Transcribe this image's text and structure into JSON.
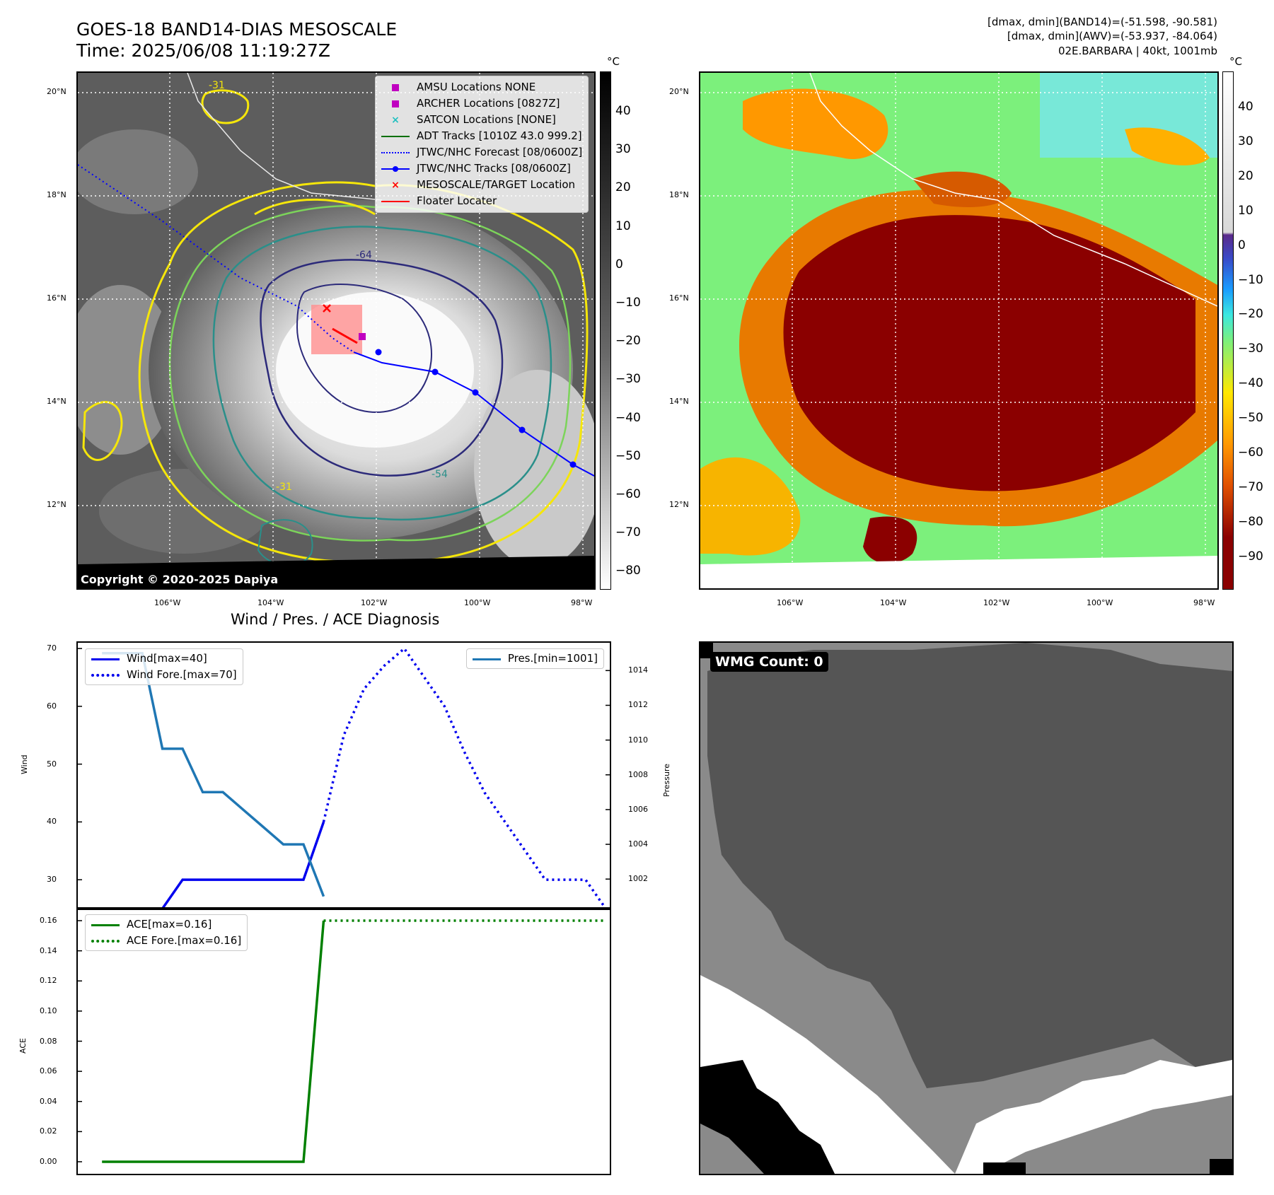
{
  "header": {
    "title_line1": "GOES-18 BAND14-DIAS MESOSCALE",
    "title_line2": "Time: 2025/06/08 11:19:27Z",
    "info_line1": "[dmax, dmin](BAND14)=(-51.598, -90.581)",
    "info_line2": "[dmax, dmin](AWV)=(-53.937, -84.064)",
    "info_line3": "02E.BARBARA | 40kt, 1001mb"
  },
  "map_ir": {
    "lat_labels": [
      "20°N",
      "18°N",
      "16°N",
      "14°N",
      "12°N"
    ],
    "lon_labels": [
      "106°W",
      "104°W",
      "102°W",
      "100°W",
      "98°W"
    ],
    "contour_labels": [
      "-31",
      "-54",
      "-64"
    ],
    "colorbar": {
      "unit": "°C",
      "ticks": [
        "40",
        "30",
        "20",
        "10",
        "0",
        "−10",
        "−20",
        "−30",
        "−40",
        "−50",
        "−60",
        "−70",
        "−80"
      ]
    },
    "copyright": "Copyright © 2020-2025 Dapiya",
    "legend": [
      {
        "label": "AMSU Locations NONE",
        "marker": "square",
        "color": "#c000c0"
      },
      {
        "label": "ARCHER Locations [0827Z]",
        "marker": "square",
        "color": "#c000c0"
      },
      {
        "label": "SATCON Locations [NONE]",
        "marker": "x",
        "color": "#20c0c0"
      },
      {
        "label": "ADT Tracks [1010Z 43.0 999.2]",
        "marker": "line",
        "color": "#007000"
      },
      {
        "label": "JTWC/NHC Forecast [08/0600Z]",
        "marker": "dotted",
        "color": "#0000ff"
      },
      {
        "label": "JTWC/NHC Tracks [08/0600Z]",
        "marker": "line-dot",
        "color": "#0000ff"
      },
      {
        "label": "MESOSCALE/TARGET Location",
        "marker": "x",
        "color": "#ff0000"
      },
      {
        "label": "Floater Locater",
        "marker": "line",
        "color": "#ff0000"
      }
    ],
    "colors": {
      "track": "#0000ff",
      "contour_yellow": "#f5e60a",
      "contour_green": "#7cd45a",
      "contour_teal": "#2a8f8a",
      "contour_navy": "#2c2a7a",
      "floater": "#ff0000"
    }
  },
  "map_awv": {
    "lat_labels": [
      "20°N",
      "18°N",
      "16°N",
      "14°N",
      "12°N"
    ],
    "lon_labels": [
      "106°W",
      "104°W",
      "102°W",
      "100°W",
      "98°W"
    ],
    "colorbar": {
      "unit": "°C",
      "ticks": [
        "40",
        "30",
        "20",
        "10",
        "0",
        "−10",
        "−20",
        "−30",
        "−40",
        "−50",
        "−60",
        "−70",
        "−80",
        "−90"
      ]
    }
  },
  "chart_data": [
    {
      "type": "line",
      "title": "Wind / Pres. / ACE Diagnosis",
      "ylabel": "Wind",
      "ylabel_right": "Pressure",
      "ylim": [
        25,
        71
      ],
      "ylim_right": [
        1000.3,
        1015.6
      ],
      "yticks": [
        "70",
        "60",
        "50",
        "40",
        "30"
      ],
      "yticks_right": [
        "1014",
        "1012",
        "1010",
        "1008",
        "1006",
        "1004",
        "1002"
      ],
      "series": [
        {
          "name": "Wind[max=40]",
          "style": "solid",
          "color": "#0000ee",
          "axis": "left",
          "x": [
            0,
            3,
            4,
            5,
            6,
            7,
            8,
            9,
            10,
            11
          ],
          "y": [
            25,
            25,
            30,
            30,
            30,
            30,
            30,
            30,
            30,
            40
          ]
        },
        {
          "name": "Wind Fore.[max=70]",
          "style": "dotted",
          "color": "#0000ee",
          "axis": "left",
          "x": [
            11,
            12,
            13,
            14,
            15,
            16,
            17,
            18,
            19,
            20,
            21,
            22,
            23,
            24,
            25
          ],
          "y": [
            40,
            55,
            63,
            67,
            70,
            65,
            60,
            52,
            45,
            40,
            35,
            30,
            30,
            30,
            25
          ]
        },
        {
          "name": "Pres.[min=1001]",
          "style": "solid",
          "color": "#1f77b4",
          "axis": "right",
          "x": [
            0,
            1,
            2,
            3,
            4,
            5,
            6,
            7,
            8,
            9,
            10,
            11
          ],
          "y": [
            1015,
            1015,
            1015,
            1009.5,
            1009.5,
            1007,
            1007,
            1006,
            1005,
            1004,
            1004,
            1001
          ]
        }
      ],
      "legend_left": [
        "Wind[max=40]",
        "Wind Fore.[max=70]"
      ],
      "legend_right": [
        "Pres.[min=1001]"
      ]
    },
    {
      "type": "line",
      "ylabel": "ACE",
      "ylim": [
        -0.008,
        0.168
      ],
      "yticks": [
        "0.16",
        "0.14",
        "0.12",
        "0.10",
        "0.08",
        "0.06",
        "0.04",
        "0.02",
        "0.00"
      ],
      "series": [
        {
          "name": "ACE[max=0.16]",
          "style": "solid",
          "color": "#008000",
          "x": [
            0,
            10,
            11
          ],
          "y": [
            0,
            0,
            0.16
          ]
        },
        {
          "name": "ACE Fore.[max=0.16]",
          "style": "dotted",
          "color": "#008000",
          "x": [
            11,
            25
          ],
          "y": [
            0.16,
            0.16
          ]
        }
      ]
    }
  ],
  "wmg": {
    "label": "WMG Count: 0"
  }
}
